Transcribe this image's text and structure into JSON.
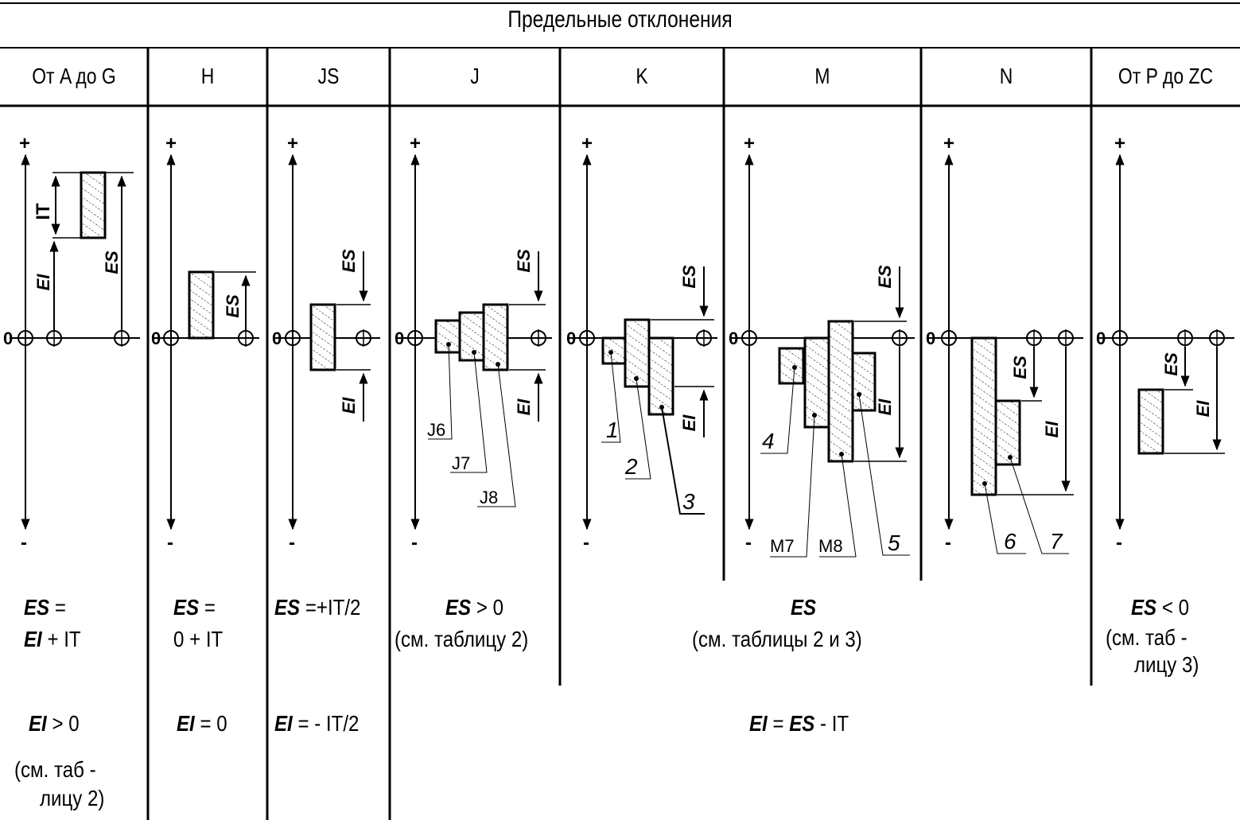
{
  "title": "Предельные отклонения",
  "columns": [
    "От A до G",
    "H",
    "JS",
    "J",
    "K",
    "M",
    "N",
    "От P до ZC"
  ],
  "axis": {
    "plus": "+",
    "minus": "-",
    "zero": "0"
  },
  "labels": {
    "it": "IT",
    "es": "ES",
    "ei": "EI",
    "j6": "J6",
    "j7": "J7",
    "j8": "J8",
    "m7": "M7",
    "m8": "M8",
    "n1": "1",
    "n2": "2",
    "n3": "3",
    "n4": "4",
    "n5": "5",
    "n6": "6",
    "n7": "7"
  },
  "formulas": {
    "ag": {
      "es_a": "ES",
      "es_b": " =",
      "es_c": "EI",
      "es_d": " + IT",
      "ei_a": "EI",
      "ei_b": "  > 0",
      "ref1": "(см. таб -",
      "ref2": "лицу 2)"
    },
    "h": {
      "es_a": "ES",
      "es_b": " =",
      "es_c": "0 + IT",
      "ei_a": "EI",
      "ei_b": " = 0"
    },
    "js": {
      "es_a": "ES",
      "es_b": " =+IT/2",
      "ei_a": "EI",
      "ei_b": " = - IT/2"
    },
    "j": {
      "es_a": "ES",
      "es_b": " > 0",
      "ref": "(см. таблицу 2)"
    },
    "kmn": {
      "es": "ES",
      "ref": "(см. таблицы 2 и 3)"
    },
    "pzc": {
      "es_a": "ES",
      "es_b": " < 0",
      "ref1": "(см. таб -",
      "ref2": "лицу 3)"
    },
    "common": {
      "ei_a": "EI",
      "ei_b": " = ",
      "ei_c": "ES",
      "ei_d": " - IT"
    }
  }
}
